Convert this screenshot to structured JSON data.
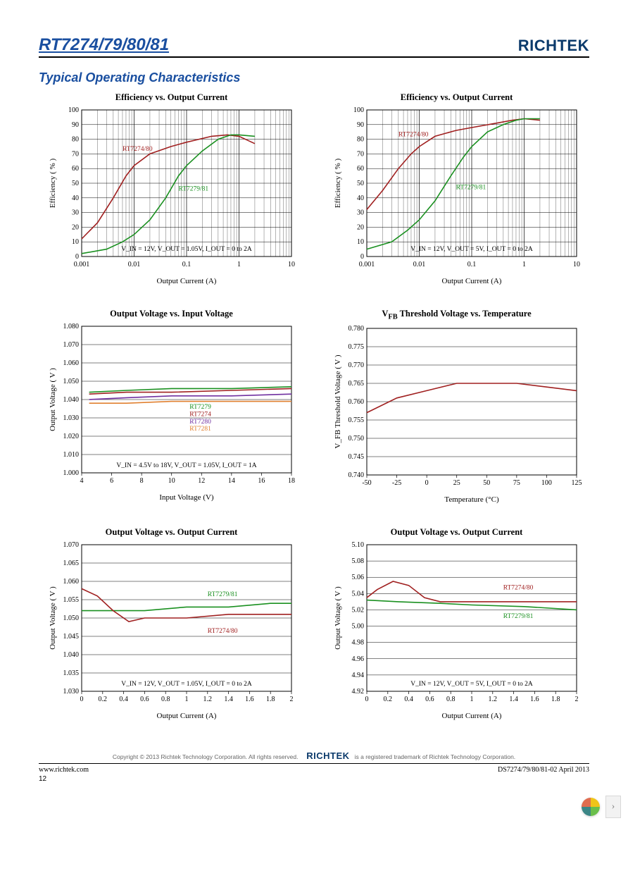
{
  "header": {
    "part_number": "RT7274/79/80/81",
    "brand": "RICHTEK"
  },
  "section_title": "Typical Operating Characteristics",
  "colors": {
    "series_a": "#a02020",
    "series_b": "#1a9020",
    "series_c": "#7030a0",
    "series_d": "#e08030",
    "grid": "#000000",
    "axis": "#000000",
    "bg": "#ffffff"
  },
  "charts": [
    {
      "id": "c1",
      "title": "Efficiency vs. Output Current",
      "xlabel": "Output Current (A)",
      "ylabel": "Efficiency  ( % )",
      "xscale": "log",
      "xlim": [
        0.001,
        10
      ],
      "xticks": [
        0.001,
        0.01,
        0.1,
        1,
        10
      ],
      "ylim": [
        0,
        100
      ],
      "yticks": [
        0,
        10,
        20,
        30,
        40,
        50,
        60,
        70,
        80,
        90,
        100
      ],
      "note": "V_IN = 12V, V_OUT = 1.05V, I_OUT = 0 to 2A",
      "series": [
        {
          "label": "RT7274/80",
          "color": "series_a",
          "pts": [
            [
              0.001,
              12
            ],
            [
              0.002,
              23
            ],
            [
              0.004,
              40
            ],
            [
              0.007,
              55
            ],
            [
              0.01,
              62
            ],
            [
              0.02,
              70
            ],
            [
              0.05,
              75
            ],
            [
              0.1,
              78
            ],
            [
              0.3,
              82
            ],
            [
              0.6,
              83
            ],
            [
              1,
              82
            ],
            [
              2,
              77
            ]
          ],
          "label_xy": [
            0.006,
            72
          ]
        },
        {
          "label": "RT7279/81",
          "color": "series_b",
          "pts": [
            [
              0.001,
              2
            ],
            [
              0.003,
              5
            ],
            [
              0.006,
              10
            ],
            [
              0.01,
              15
            ],
            [
              0.02,
              25
            ],
            [
              0.04,
              40
            ],
            [
              0.07,
              55
            ],
            [
              0.1,
              62
            ],
            [
              0.2,
              72
            ],
            [
              0.4,
              80
            ],
            [
              0.7,
              83
            ],
            [
              1,
              83
            ],
            [
              2,
              82
            ]
          ],
          "label_xy": [
            0.07,
            45
          ]
        }
      ]
    },
    {
      "id": "c2",
      "title": "Efficiency vs. Output Current",
      "xlabel": "Output Current (A)",
      "ylabel": "Efficiency  ( % )",
      "xscale": "log",
      "xlim": [
        0.001,
        10
      ],
      "xticks": [
        0.001,
        0.01,
        0.1,
        1,
        10
      ],
      "ylim": [
        0,
        100
      ],
      "yticks": [
        0,
        10,
        20,
        30,
        40,
        50,
        60,
        70,
        80,
        90,
        100
      ],
      "note": "V_IN = 12V, V_OUT = 5V, I_OUT = 0 to 2A",
      "series": [
        {
          "label": "RT7274/80",
          "color": "series_a",
          "pts": [
            [
              0.001,
              32
            ],
            [
              0.002,
              45
            ],
            [
              0.004,
              60
            ],
            [
              0.007,
              70
            ],
            [
              0.01,
              75
            ],
            [
              0.02,
              82
            ],
            [
              0.05,
              86
            ],
            [
              0.1,
              88
            ],
            [
              0.3,
              91
            ],
            [
              0.6,
              93
            ],
            [
              1,
              94
            ],
            [
              2,
              93
            ]
          ],
          "label_xy": [
            0.004,
            82
          ]
        },
        {
          "label": "RT7279/81",
          "color": "series_b",
          "pts": [
            [
              0.001,
              5
            ],
            [
              0.003,
              10
            ],
            [
              0.006,
              18
            ],
            [
              0.01,
              25
            ],
            [
              0.02,
              38
            ],
            [
              0.04,
              55
            ],
            [
              0.07,
              68
            ],
            [
              0.1,
              75
            ],
            [
              0.2,
              85
            ],
            [
              0.4,
              90
            ],
            [
              0.7,
              93
            ],
            [
              1,
              94
            ],
            [
              2,
              94
            ]
          ],
          "label_xy": [
            0.05,
            46
          ]
        }
      ]
    },
    {
      "id": "c3",
      "title": "Output Voltage vs. Input Voltage",
      "xlabel": "Input Voltage (V)",
      "ylabel": "Output  Voltage  ( V )",
      "xscale": "linear",
      "xlim": [
        4,
        18
      ],
      "xticks": [
        4,
        6,
        8,
        10,
        12,
        14,
        16,
        18
      ],
      "ylim": [
        1.0,
        1.08
      ],
      "yticks": [
        1.0,
        1.01,
        1.02,
        1.03,
        1.04,
        1.05,
        1.06,
        1.07,
        1.08
      ],
      "note": "V_IN = 4.5V to 18V, V_OUT = 1.05V, I_OUT = 1A",
      "series": [
        {
          "label": "RT7279",
          "color": "series_b",
          "pts": [
            [
              4.5,
              1.044
            ],
            [
              7,
              1.045
            ],
            [
              10,
              1.046
            ],
            [
              14,
              1.046
            ],
            [
              18,
              1.047
            ]
          ],
          "label_xy": [
            11.2,
            1.035
          ]
        },
        {
          "label": "RT7274",
          "color": "series_a",
          "pts": [
            [
              4.5,
              1.043
            ],
            [
              7,
              1.044
            ],
            [
              10,
              1.044
            ],
            [
              14,
              1.045
            ],
            [
              18,
              1.046
            ]
          ],
          "label_xy": [
            11.2,
            1.031
          ]
        },
        {
          "label": "RT7280",
          "color": "series_c",
          "pts": [
            [
              4.5,
              1.04
            ],
            [
              7,
              1.041
            ],
            [
              10,
              1.042
            ],
            [
              14,
              1.042
            ],
            [
              18,
              1.043
            ]
          ],
          "label_xy": [
            11.2,
            1.027
          ]
        },
        {
          "label": "RT7281",
          "color": "series_d",
          "pts": [
            [
              4.5,
              1.038
            ],
            [
              7,
              1.038
            ],
            [
              10,
              1.039
            ],
            [
              14,
              1.039
            ],
            [
              18,
              1.039
            ]
          ],
          "label_xy": [
            11.2,
            1.023
          ]
        }
      ]
    },
    {
      "id": "c4",
      "title": "V_FB  Threshold Voltage vs. Temperature",
      "xlabel": "Temperature (°C)",
      "ylabel": "V_FB  Threshold  Voltage  ( V )",
      "xscale": "linear",
      "xlim": [
        -50,
        125
      ],
      "xticks": [
        -50,
        -25,
        0,
        25,
        50,
        75,
        100,
        125
      ],
      "ylim": [
        0.74,
        0.78
      ],
      "yticks": [
        0.74,
        0.745,
        0.75,
        0.755,
        0.76,
        0.765,
        0.77,
        0.775,
        0.78
      ],
      "note": "",
      "series": [
        {
          "label": "",
          "color": "series_a",
          "pts": [
            [
              -50,
              0.757
            ],
            [
              -25,
              0.761
            ],
            [
              0,
              0.763
            ],
            [
              25,
              0.765
            ],
            [
              50,
              0.765
            ],
            [
              75,
              0.765
            ],
            [
              100,
              0.764
            ],
            [
              125,
              0.763
            ]
          ]
        }
      ]
    },
    {
      "id": "c5",
      "title": "Output Voltage vs. Output Current",
      "xlabel": "Output Current (A)",
      "ylabel": "Output  Voltage  ( V )",
      "xscale": "linear",
      "xlim": [
        0,
        2
      ],
      "xticks": [
        0,
        0.2,
        0.4,
        0.6,
        0.8,
        1,
        1.2,
        1.4,
        1.6,
        1.8,
        2
      ],
      "ylim": [
        1.03,
        1.07
      ],
      "yticks": [
        1.03,
        1.035,
        1.04,
        1.045,
        1.05,
        1.055,
        1.06,
        1.065,
        1.07
      ],
      "note": "V_IN = 12V, V_OUT = 1.05V, I_OUT = 0 to 2A",
      "series": [
        {
          "label": "RT7279/81",
          "color": "series_b",
          "pts": [
            [
              0,
              1.052
            ],
            [
              0.3,
              1.052
            ],
            [
              0.6,
              1.052
            ],
            [
              1,
              1.053
            ],
            [
              1.4,
              1.053
            ],
            [
              1.8,
              1.054
            ],
            [
              2,
              1.054
            ]
          ],
          "label_xy": [
            1.2,
            1.056
          ]
        },
        {
          "label": "RT7274/80",
          "color": "series_a",
          "pts": [
            [
              0,
              1.058
            ],
            [
              0.15,
              1.056
            ],
            [
              0.3,
              1.052
            ],
            [
              0.45,
              1.049
            ],
            [
              0.6,
              1.05
            ],
            [
              1,
              1.05
            ],
            [
              1.4,
              1.051
            ],
            [
              1.8,
              1.051
            ],
            [
              2,
              1.051
            ]
          ],
          "label_xy": [
            1.2,
            1.046
          ]
        }
      ]
    },
    {
      "id": "c6",
      "title": "Output Voltage vs. Output Current",
      "xlabel": "Output Current (A)",
      "ylabel": "Output  Voltage  ( V )",
      "xscale": "linear",
      "xlim": [
        0,
        2
      ],
      "xticks": [
        0,
        0.2,
        0.4,
        0.6,
        0.8,
        1,
        1.2,
        1.4,
        1.6,
        1.8,
        2
      ],
      "ylim": [
        4.92,
        5.1
      ],
      "yticks": [
        4.92,
        4.94,
        4.96,
        4.98,
        5.0,
        5.02,
        5.04,
        5.06,
        5.08,
        5.1
      ],
      "note": "V_IN = 12V, V_OUT = 5V, I_OUT = 0 to 2A",
      "series": [
        {
          "label": "RT7274/80",
          "color": "series_a",
          "pts": [
            [
              0,
              5.035
            ],
            [
              0.1,
              5.045
            ],
            [
              0.25,
              5.055
            ],
            [
              0.4,
              5.05
            ],
            [
              0.55,
              5.035
            ],
            [
              0.7,
              5.03
            ],
            [
              1,
              5.03
            ],
            [
              1.5,
              5.03
            ],
            [
              2,
              5.03
            ]
          ],
          "label_xy": [
            1.3,
            5.045
          ]
        },
        {
          "label": "RT7279/81",
          "color": "series_b",
          "pts": [
            [
              0,
              5.032
            ],
            [
              0.3,
              5.03
            ],
            [
              0.7,
              5.028
            ],
            [
              1,
              5.026
            ],
            [
              1.5,
              5.024
            ],
            [
              2,
              5.02
            ]
          ],
          "label_xy": [
            1.3,
            5.01
          ]
        }
      ]
    }
  ],
  "footer": {
    "copyright": "Copyright © 2013 Richtek Technology Corporation. All rights reserved.",
    "trademark_note": "is a registered trademark of Richtek Technology Corporation.",
    "brand": "RICHTEK",
    "url": "www.richtek.com",
    "docref": "DS7274/79/80/81-02   April  2013",
    "page": "12"
  }
}
